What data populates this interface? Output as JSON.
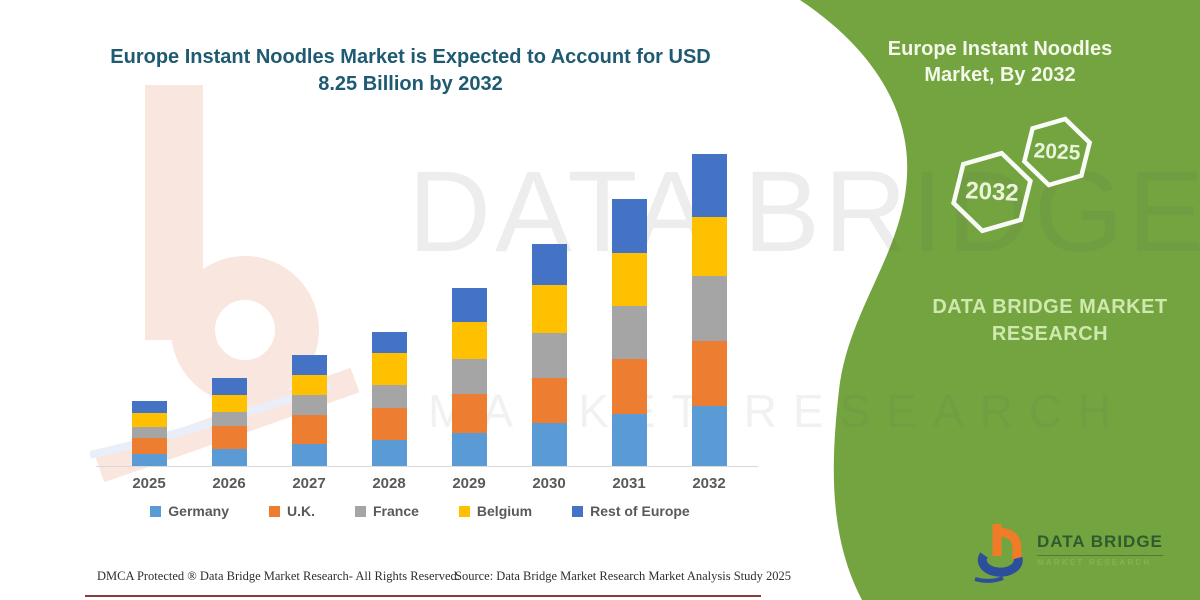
{
  "theme": {
    "panel_green": "#73A43F",
    "title_color": "#1E5A72",
    "axis_text_color": "#595959",
    "watermark_pink": "#f9e6df",
    "logo_orange": "#F07B28",
    "logo_blue": "#2C4E9B"
  },
  "main": {
    "title": "Europe Instant Noodles Market is Expected to Account for USD 8.25 Billion by 2032",
    "title_lines": [
      "Europe Instant Noodles Market is Expected to Account for USD",
      "8.25 Billion by 2032"
    ]
  },
  "side_panel": {
    "title": "Europe Instant Noodles Market, By 2032",
    "title_lines": [
      "Europe Instant Noodles",
      "Market, By 2032"
    ],
    "hexagons": [
      "2032",
      "2025"
    ],
    "brand_text": "DATA BRIDGE MARKET RESEARCH",
    "logo": {
      "name": "DATA BRIDGE",
      "subtitle": "MARKET RESEARCH"
    }
  },
  "watermark": {
    "line1": "DATA BRIDGE",
    "line2": "MARKET RESEARCH"
  },
  "footer": {
    "dmca": "DMCA Protected ® Data Bridge Market Research-  All Rights Reserved.",
    "source": "Source: Data Bridge Market Research  Market Analysis Study 2025"
  },
  "chart_data": {
    "type": "bar",
    "stacked": true,
    "title": "Europe Instant Noodles Market is Expected to Account for USD 8.25 Billion by 2032",
    "unit": "USD Billion",
    "xlabel": "",
    "ylabel": "",
    "gridlines": false,
    "y_axis_visible": false,
    "legend_position": "bottom",
    "categories": [
      "2025",
      "2026",
      "2027",
      "2028",
      "2029",
      "2030",
      "2031",
      "2032"
    ],
    "series": [
      {
        "name": "Germany",
        "color": "#5B9BD5",
        "values": [
          0.34,
          0.47,
          0.61,
          0.71,
          0.9,
          1.16,
          1.4,
          1.61
        ]
      },
      {
        "name": "U.K.",
        "color": "#ED7D31",
        "values": [
          0.42,
          0.61,
          0.76,
          0.84,
          1.03,
          1.19,
          1.45,
          1.71
        ]
      },
      {
        "name": "France",
        "color": "#A5A5A5",
        "values": [
          0.29,
          0.37,
          0.53,
          0.61,
          0.92,
          1.19,
          1.4,
          1.71
        ]
      },
      {
        "name": "Belgium",
        "color": "#FFC000",
        "values": [
          0.37,
          0.45,
          0.53,
          0.84,
          0.98,
          1.27,
          1.4,
          1.56
        ]
      },
      {
        "name": "Rest of Europe",
        "color": "#4472C4",
        "values": [
          0.32,
          0.45,
          0.53,
          0.55,
          0.9,
          1.08,
          1.42,
          1.66
        ]
      }
    ],
    "totals": [
      1.74,
      2.35,
      2.96,
      3.55,
      4.73,
      5.89,
      7.07,
      8.25
    ],
    "highlight_value_2032": "USD 8.25 Billion"
  }
}
